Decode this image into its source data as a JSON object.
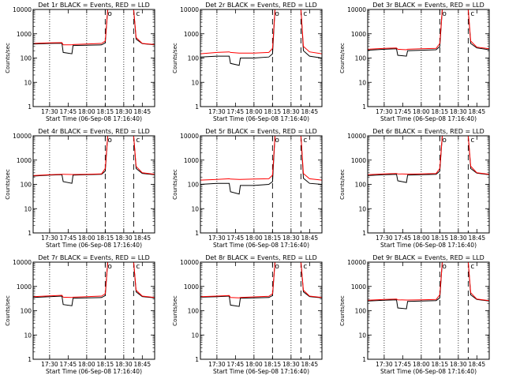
{
  "figure": {
    "background": "#ffffff",
    "foreground": "#000000",
    "events_color": "#000000",
    "lld_color": "#ff0000"
  },
  "chart_data": [
    {
      "type": "line",
      "title": "Det 1r BLACK = Events, RED = LLD",
      "xlabel": "Start Time (06-Sep-08 17:16:40)",
      "ylabel": "Counts/sec",
      "y_scale": "log",
      "ylim": [
        1,
        10000
      ],
      "y_ticks": [
        "1",
        "10",
        "100",
        "1000",
        "10000"
      ],
      "x_ticks": [
        "17:30",
        "17:45",
        "18:00",
        "18:15",
        "18:30",
        "18:45"
      ],
      "xlim": [
        "17:16:40",
        "18:55"
      ],
      "grid": false,
      "dotted_lines_at": [
        "17:30",
        "18:00",
        "18:30"
      ],
      "dashed_lines_at": [
        "18:15",
        "18:38"
      ],
      "annotations": [
        "o",
        "c"
      ],
      "series": [
        {
          "name": "Events",
          "color": "#000000",
          "x": [
            "17:16:40",
            "17:30",
            "17:40",
            "17:41",
            "17:48",
            "17:49",
            "18:00",
            "18:12",
            "18:15",
            "18:17",
            "18:38",
            "18:40",
            "18:45",
            "18:55"
          ],
          "y": [
            380,
            400,
            410,
            170,
            150,
            330,
            340,
            350,
            420,
            10000,
            10000,
            600,
            390,
            350
          ]
        },
        {
          "name": "LLD",
          "color": "#ff0000",
          "x": [
            "17:16:40",
            "17:30",
            "17:40",
            "17:41",
            "17:48",
            "17:49",
            "18:00",
            "18:12",
            "18:15",
            "18:17",
            "18:38",
            "18:40",
            "18:45",
            "18:55"
          ],
          "y": [
            400,
            420,
            430,
            350,
            350,
            360,
            380,
            400,
            500,
            10000,
            10000,
            700,
            400,
            360
          ]
        }
      ]
    },
    {
      "type": "line",
      "title": "Det 2r BLACK = Events, RED = LLD",
      "xlabel": "Start Time (06-Sep-08 17:16:40)",
      "ylabel": "Counts/sec",
      "y_scale": "log",
      "ylim": [
        1,
        10000
      ],
      "y_ticks": [
        "1",
        "10",
        "100",
        "1000",
        "10000"
      ],
      "x_ticks": [
        "17:30",
        "17:45",
        "18:00",
        "18:15",
        "18:30",
        "18:45"
      ],
      "xlim": [
        "17:16:40",
        "18:55"
      ],
      "grid": false,
      "dotted_lines_at": [
        "17:30",
        "18:00",
        "18:30"
      ],
      "dashed_lines_at": [
        "18:15",
        "18:38"
      ],
      "annotations": [
        "o",
        "c"
      ],
      "series": [
        {
          "name": "Events",
          "color": "#000000",
          "x": [
            "17:16:40",
            "17:30",
            "17:40",
            "17:41",
            "17:48",
            "17:49",
            "18:00",
            "18:12",
            "18:15",
            "18:17",
            "18:38",
            "18:40",
            "18:45",
            "18:55"
          ],
          "y": [
            110,
            120,
            120,
            60,
            50,
            100,
            100,
            110,
            150,
            10000,
            10000,
            200,
            120,
            100
          ]
        },
        {
          "name": "LLD",
          "color": "#ff0000",
          "x": [
            "17:16:40",
            "17:30",
            "17:40",
            "17:41",
            "17:48",
            "17:49",
            "18:00",
            "18:12",
            "18:15",
            "18:17",
            "18:38",
            "18:40",
            "18:45",
            "18:55"
          ],
          "y": [
            150,
            170,
            180,
            170,
            160,
            160,
            160,
            170,
            250,
            10000,
            10000,
            300,
            180,
            150
          ]
        }
      ]
    },
    {
      "type": "line",
      "title": "Det 3r BLACK = Events, RED = LLD",
      "xlabel": "Start Time (06-Sep-08 17:16:40)",
      "ylabel": "Counts/sec",
      "y_scale": "log",
      "ylim": [
        1,
        10000
      ],
      "y_ticks": [
        "1",
        "10",
        "100",
        "1000",
        "10000"
      ],
      "x_ticks": [
        "17:30",
        "17:45",
        "18:00",
        "18:15",
        "18:30",
        "18:45"
      ],
      "xlim": [
        "17:16:40",
        "18:55"
      ],
      "grid": false,
      "dotted_lines_at": [
        "17:30",
        "18:00",
        "18:30"
      ],
      "dashed_lines_at": [
        "18:15",
        "18:38"
      ],
      "annotations": [
        "o",
        "c"
      ],
      "series": [
        {
          "name": "Events",
          "color": "#000000",
          "x": [
            "17:16:40",
            "17:30",
            "17:40",
            "17:41",
            "17:48",
            "17:49",
            "18:00",
            "18:12",
            "18:15",
            "18:17",
            "18:38",
            "18:40",
            "18:45",
            "18:55"
          ],
          "y": [
            210,
            230,
            240,
            130,
            120,
            200,
            210,
            220,
            300,
            10000,
            10000,
            400,
            260,
            220
          ]
        },
        {
          "name": "LLD",
          "color": "#ff0000",
          "x": [
            "17:16:40",
            "17:30",
            "17:40",
            "17:41",
            "17:48",
            "17:49",
            "18:00",
            "18:12",
            "18:15",
            "18:17",
            "18:38",
            "18:40",
            "18:45",
            "18:55"
          ],
          "y": [
            230,
            250,
            260,
            230,
            220,
            230,
            240,
            250,
            400,
            10000,
            10000,
            500,
            280,
            240
          ]
        }
      ]
    },
    {
      "type": "line",
      "title": "Det 4r BLACK = Events, RED = LLD",
      "xlabel": "Start Time (06-Sep-08 17:16:40)",
      "ylabel": "Counts/sec",
      "y_scale": "log",
      "ylim": [
        1,
        10000
      ],
      "y_ticks": [
        "1",
        "10",
        "100",
        "1000",
        "10000"
      ],
      "x_ticks": [
        "17:30",
        "17:45",
        "18:00",
        "18:15",
        "18:30",
        "18:45"
      ],
      "xlim": [
        "17:16:40",
        "18:55"
      ],
      "grid": false,
      "dotted_lines_at": [
        "17:30",
        "18:00",
        "18:30"
      ],
      "dashed_lines_at": [
        "18:15",
        "18:38"
      ],
      "annotations": [
        "o",
        "c"
      ],
      "series": [
        {
          "name": "Events",
          "color": "#000000",
          "x": [
            "17:16:40",
            "17:30",
            "17:40",
            "17:41",
            "17:48",
            "17:49",
            "18:00",
            "18:12",
            "18:15",
            "18:17",
            "18:38",
            "18:40",
            "18:45",
            "18:55"
          ],
          "y": [
            220,
            240,
            250,
            130,
            110,
            240,
            250,
            260,
            350,
            10000,
            10000,
            450,
            280,
            250
          ]
        },
        {
          "name": "LLD",
          "color": "#ff0000",
          "x": [
            "17:16:40",
            "17:30",
            "17:40",
            "17:41",
            "17:48",
            "17:49",
            "18:00",
            "18:12",
            "18:15",
            "18:17",
            "18:38",
            "18:40",
            "18:45",
            "18:55"
          ],
          "y": [
            230,
            250,
            260,
            260,
            255,
            255,
            260,
            270,
            450,
            10000,
            10000,
            550,
            300,
            260
          ]
        }
      ]
    },
    {
      "type": "line",
      "title": "Det 5r BLACK = Events, RED = LLD",
      "xlabel": "Start Time (06-Sep-08 17:16:40)",
      "ylabel": "Counts/sec",
      "y_scale": "log",
      "ylim": [
        1,
        10000
      ],
      "y_ticks": [
        "1",
        "10",
        "100",
        "1000",
        "10000"
      ],
      "x_ticks": [
        "17:30",
        "17:45",
        "18:00",
        "18:15",
        "18:30",
        "18:45"
      ],
      "xlim": [
        "17:16:40",
        "18:55"
      ],
      "grid": false,
      "dotted_lines_at": [
        "17:30",
        "18:00",
        "18:30"
      ],
      "dashed_lines_at": [
        "18:15",
        "18:38"
      ],
      "annotations": [
        "o",
        "c"
      ],
      "series": [
        {
          "name": "Events",
          "color": "#000000",
          "x": [
            "17:16:40",
            "17:30",
            "17:40",
            "17:41",
            "17:48",
            "17:49",
            "18:00",
            "18:12",
            "18:15",
            "18:17",
            "18:38",
            "18:40",
            "18:45",
            "18:55"
          ],
          "y": [
            100,
            110,
            110,
            50,
            40,
            90,
            90,
            100,
            130,
            10000,
            10000,
            180,
            110,
            100
          ]
        },
        {
          "name": "LLD",
          "color": "#ff0000",
          "x": [
            "17:16:40",
            "17:30",
            "17:40",
            "17:41",
            "17:48",
            "17:49",
            "18:00",
            "18:12",
            "18:15",
            "18:17",
            "18:38",
            "18:40",
            "18:45",
            "18:55"
          ],
          "y": [
            150,
            160,
            170,
            165,
            160,
            160,
            165,
            170,
            240,
            10000,
            10000,
            280,
            170,
            150
          ]
        }
      ]
    },
    {
      "type": "line",
      "title": "Det 6r BLACK = Events, RED = LLD",
      "xlabel": "Start Time (06-Sep-08 17:16:40)",
      "ylabel": "Counts/sec",
      "y_scale": "log",
      "ylim": [
        1,
        10000
      ],
      "y_ticks": [
        "1",
        "10",
        "100",
        "1000",
        "10000"
      ],
      "x_ticks": [
        "17:30",
        "17:45",
        "18:00",
        "18:15",
        "18:30",
        "18:45"
      ],
      "xlim": [
        "17:16:40",
        "18:55"
      ],
      "grid": false,
      "dotted_lines_at": [
        "17:30",
        "18:00",
        "18:30"
      ],
      "dashed_lines_at": [
        "18:15",
        "18:38"
      ],
      "annotations": [
        "o",
        "c"
      ],
      "series": [
        {
          "name": "Events",
          "color": "#000000",
          "x": [
            "17:16:40",
            "17:30",
            "17:40",
            "17:41",
            "17:48",
            "17:49",
            "18:00",
            "18:12",
            "18:15",
            "18:17",
            "18:38",
            "18:40",
            "18:45",
            "18:55"
          ],
          "y": [
            230,
            250,
            260,
            140,
            120,
            240,
            250,
            260,
            350,
            10000,
            10000,
            450,
            290,
            250
          ]
        },
        {
          "name": "LLD",
          "color": "#ff0000",
          "x": [
            "17:16:40",
            "17:30",
            "17:40",
            "17:41",
            "17:48",
            "17:49",
            "18:00",
            "18:12",
            "18:15",
            "18:17",
            "18:38",
            "18:40",
            "18:45",
            "18:55"
          ],
          "y": [
            250,
            270,
            280,
            270,
            265,
            265,
            270,
            280,
            450,
            10000,
            10000,
            560,
            300,
            260
          ]
        }
      ]
    },
    {
      "type": "line",
      "title": "Det 7r BLACK = Events, RED = LLD",
      "xlabel": "Start Time (06-Sep-08 17:16:40)",
      "ylabel": "Counts/sec",
      "y_scale": "log",
      "ylim": [
        1,
        10000
      ],
      "y_ticks": [
        "1",
        "10",
        "100",
        "1000",
        "10000"
      ],
      "x_ticks": [
        "17:30",
        "17:45",
        "18:00",
        "18:15",
        "18:30",
        "18:45"
      ],
      "xlim": [
        "17:16:40",
        "18:55"
      ],
      "grid": false,
      "dotted_lines_at": [
        "17:30",
        "18:00",
        "18:30"
      ],
      "dashed_lines_at": [
        "18:15",
        "18:38"
      ],
      "annotations": [
        "o",
        "c"
      ],
      "series": [
        {
          "name": "Events",
          "color": "#000000",
          "x": [
            "17:16:40",
            "17:30",
            "17:40",
            "17:41",
            "17:48",
            "17:49",
            "18:00",
            "18:12",
            "18:15",
            "18:17",
            "18:38",
            "18:40",
            "18:45",
            "18:55"
          ],
          "y": [
            350,
            380,
            400,
            180,
            160,
            330,
            340,
            350,
            420,
            10000,
            10000,
            600,
            380,
            340
          ]
        },
        {
          "name": "LLD",
          "color": "#ff0000",
          "x": [
            "17:16:40",
            "17:30",
            "17:40",
            "17:41",
            "17:48",
            "17:49",
            "18:00",
            "18:12",
            "18:15",
            "18:17",
            "18:38",
            "18:40",
            "18:45",
            "18:55"
          ],
          "y": [
            380,
            410,
            430,
            360,
            350,
            360,
            380,
            400,
            500,
            10000,
            10000,
            700,
            400,
            350
          ]
        }
      ]
    },
    {
      "type": "line",
      "title": "Det 8r BLACK = Events, RED = LLD",
      "xlabel": "Start Time (06-Sep-08 17:16:40)",
      "ylabel": "Counts/sec",
      "y_scale": "log",
      "ylim": [
        1,
        10000
      ],
      "y_ticks": [
        "1",
        "10",
        "100",
        "1000",
        "10000"
      ],
      "x_ticks": [
        "17:30",
        "17:45",
        "18:00",
        "18:15",
        "18:30",
        "18:45"
      ],
      "xlim": [
        "17:16:40",
        "18:55"
      ],
      "grid": false,
      "dotted_lines_at": [
        "17:30",
        "18:00",
        "18:30"
      ],
      "dashed_lines_at": [
        "18:15",
        "18:38"
      ],
      "annotations": [
        "o",
        "c"
      ],
      "series": [
        {
          "name": "Events",
          "color": "#000000",
          "x": [
            "17:16:40",
            "17:30",
            "17:40",
            "17:41",
            "17:48",
            "17:49",
            "18:00",
            "18:12",
            "18:15",
            "18:17",
            "18:38",
            "18:40",
            "18:45",
            "18:55"
          ],
          "y": [
            360,
            380,
            400,
            170,
            150,
            330,
            340,
            350,
            420,
            10000,
            10000,
            600,
            380,
            340
          ]
        },
        {
          "name": "LLD",
          "color": "#ff0000",
          "x": [
            "17:16:40",
            "17:30",
            "17:40",
            "17:41",
            "17:48",
            "17:49",
            "18:00",
            "18:12",
            "18:15",
            "18:17",
            "18:38",
            "18:40",
            "18:45",
            "18:55"
          ],
          "y": [
            380,
            400,
            420,
            350,
            340,
            350,
            370,
            390,
            500,
            10000,
            10000,
            700,
            400,
            350
          ]
        }
      ]
    },
    {
      "type": "line",
      "title": "Det 9r BLACK = Events, RED = LLD",
      "xlabel": "Start Time (06-Sep-08 17:16:40)",
      "ylabel": "Counts/sec",
      "y_scale": "log",
      "ylim": [
        1,
        10000
      ],
      "y_ticks": [
        "1",
        "10",
        "100",
        "1000",
        "10000"
      ],
      "x_ticks": [
        "17:30",
        "17:45",
        "18:00",
        "18:15",
        "18:30",
        "18:45"
      ],
      "xlim": [
        "17:16:40",
        "18:55"
      ],
      "grid": false,
      "dotted_lines_at": [
        "17:30",
        "18:00",
        "18:30"
      ],
      "dashed_lines_at": [
        "18:15",
        "18:38"
      ],
      "annotations": [
        "o",
        "c"
      ],
      "series": [
        {
          "name": "Events",
          "color": "#000000",
          "x": [
            "17:16:40",
            "17:30",
            "17:40",
            "17:41",
            "17:48",
            "17:49",
            "18:00",
            "18:12",
            "18:15",
            "18:17",
            "18:38",
            "18:40",
            "18:45",
            "18:55"
          ],
          "y": [
            250,
            270,
            280,
            130,
            120,
            240,
            250,
            260,
            340,
            10000,
            10000,
            450,
            290,
            250
          ]
        },
        {
          "name": "LLD",
          "color": "#ff0000",
          "x": [
            "17:16:40",
            "17:30",
            "17:40",
            "17:41",
            "17:48",
            "17:49",
            "18:00",
            "18:12",
            "18:15",
            "18:17",
            "18:38",
            "18:40",
            "18:45",
            "18:55"
          ],
          "y": [
            270,
            290,
            300,
            280,
            275,
            275,
            280,
            290,
            450,
            10000,
            10000,
            550,
            300,
            260
          ]
        }
      ]
    }
  ]
}
